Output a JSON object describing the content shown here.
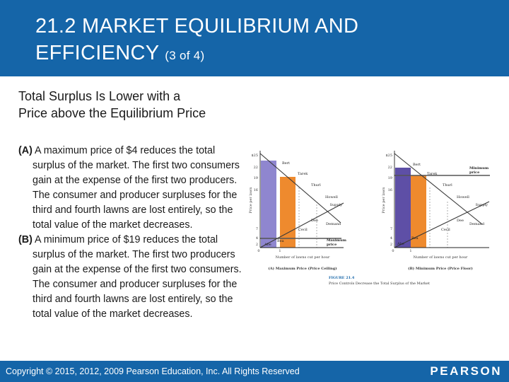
{
  "slide": {
    "title_line1": "21.2 MARKET EQUILIBRIUM AND",
    "title_line2": "EFFICIENCY",
    "title_suffix": "(3 of 4)",
    "subtitle_line1": "Total Surplus Is Lower with a",
    "subtitle_line2": "Price above the Equilibrium Price",
    "para_a_label": "(A)",
    "para_a_text": "A maximum price of $4 reduces the total surplus of the market. The first two consumers gain at the expense of the first two producers. The consumer and producer surpluses for the third and fourth lawns are lost entirely, so the total value of the market decreases.",
    "para_b_label": "(B)",
    "para_b_text": "A minimum price of $19 reduces the total surplus of the market. The first two producers gain at the expense of the first two consumers. The consumer and producer surpluses for the third and fourth lawns are lost entirely, so the total value of the market decreases."
  },
  "figure": {
    "ylabel": "Price per lawn",
    "xlabel": "Number of lawns cut per hour",
    "figure_number": "FIGURE 21.4",
    "figure_caption": "Price Controls Decrease the Total Surplus of the Market",
    "colors": {
      "consumer": "#8f86cf",
      "producer": "#ee8a2e",
      "price_line": "#555555"
    },
    "panel_a": {
      "caption": "(A) Maximum Price (Price Ceiling)",
      "price_label_line1": "Maximum",
      "price_label_line2": "price",
      "y_ticks": [
        "$25",
        "22",
        "19",
        "16",
        "7",
        "4",
        "2"
      ],
      "x_ticks": [
        "0",
        "1"
      ],
      "labels": {
        "bert": "Bert",
        "tarek": "Tarek",
        "thurl": "Thurl",
        "howell": "Howell",
        "supply": "Supply",
        "cecil": "Cecil",
        "dee": "Dee",
        "demand": "Demand",
        "bea": "Bea",
        "abe": "Abe"
      }
    },
    "panel_b": {
      "caption": "(B) Minimum Price (Price Floor)",
      "price_label_line1": "Minimum",
      "price_label_line2": "price",
      "y_ticks": [
        "$25",
        "22",
        "19",
        "16",
        "7",
        "4",
        "2"
      ],
      "x_ticks": [
        "0",
        "1"
      ],
      "labels": {
        "bert": "Bert",
        "tarek": "Tarek",
        "thurl": "Thurl",
        "howell": "Howell",
        "supply": "Supply",
        "cecil": "Cecil",
        "dee": "Dee",
        "demand": "Demand",
        "bea": "Bea",
        "abe": "Abe"
      }
    }
  },
  "footer": {
    "copyright": "Copyright © 2015, 2012, 2009 Pearson Education, Inc. All Rights Reserved",
    "logo": "PEARSON"
  }
}
